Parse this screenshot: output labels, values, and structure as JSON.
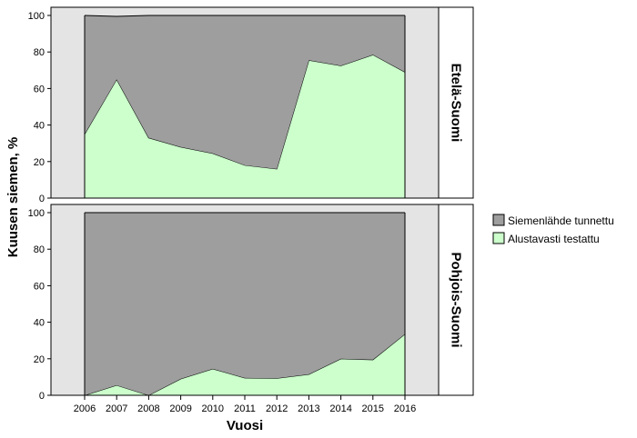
{
  "chart_data": {
    "type": "area",
    "stacked": true,
    "xlabel": "Vuosi",
    "ylabel": "Kuusen siemen, %",
    "x": [
      2006,
      2007,
      2008,
      2009,
      2010,
      2011,
      2012,
      2013,
      2014,
      2015,
      2016
    ],
    "ylim": [
      0,
      100
    ],
    "yticks": [
      0,
      20,
      40,
      60,
      80,
      100
    ],
    "grid": false,
    "legend": {
      "position": "right",
      "entries": [
        "Siemenlähde tunnettu",
        "Alustavasti testattu"
      ]
    },
    "colors": {
      "panel_background": "#e4e4e4",
      "Siemenlähde tunnettu": "#9e9e9e",
      "Alustavasti testattu": "#ccffcc"
    },
    "panels": [
      {
        "label": "Etelä-Suomi",
        "series": [
          {
            "name": "Alustavasti testattu",
            "values": [
              35,
              65,
              33,
              28,
              24.5,
              18,
              16,
              75.5,
              72.5,
              78.5,
              69
            ]
          },
          {
            "name": "Siemenlähde tunnettu",
            "values": [
              65,
              34.5,
              67,
              72,
              75.5,
              82,
              84,
              24.5,
              27.5,
              21.5,
              31
            ]
          }
        ]
      },
      {
        "label": "Pohjois-Suomi",
        "series": [
          {
            "name": "Alustavasti testattu",
            "values": [
              0,
              5.5,
              0,
              9,
              14.5,
              9.5,
              9.3,
              11.5,
              20,
              19.5,
              33.5
            ]
          },
          {
            "name": "Siemenlähde tunnettu",
            "values": [
              100,
              94.5,
              100,
              91,
              85.5,
              90.5,
              90.7,
              88.5,
              80,
              80.5,
              66.5
            ]
          }
        ]
      }
    ]
  }
}
